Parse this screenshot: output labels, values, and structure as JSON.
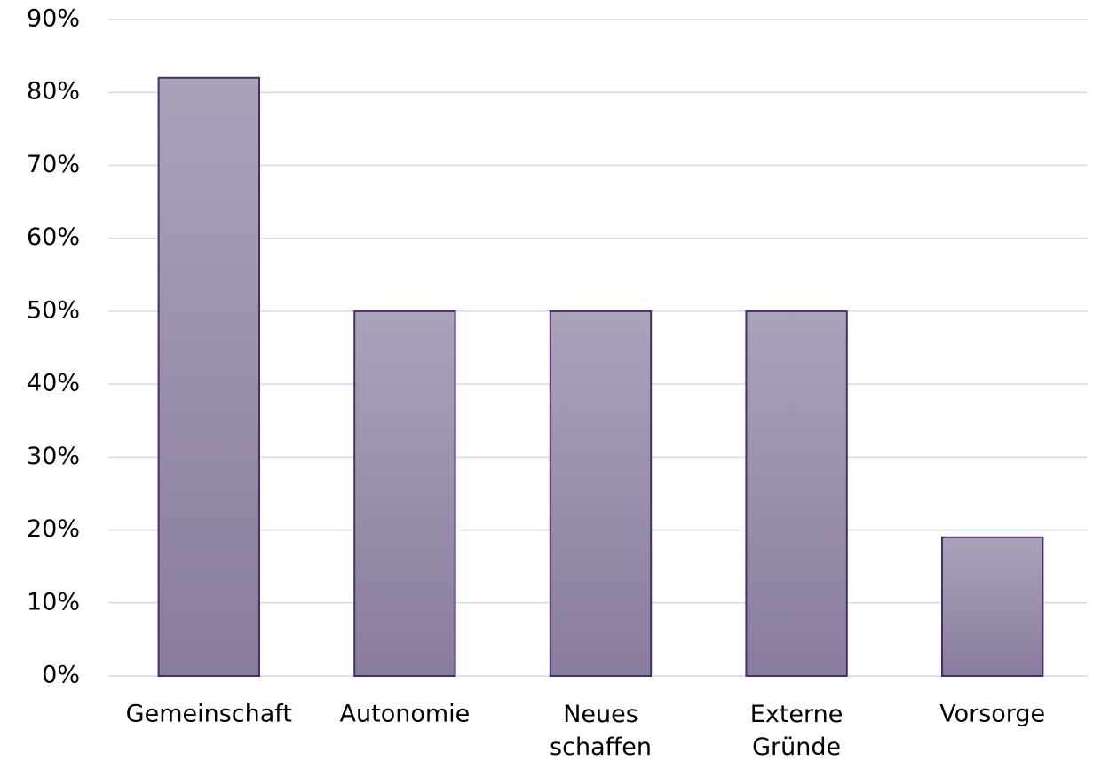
{
  "chart_data": {
    "type": "bar",
    "categories": [
      "Gemeinschaft",
      "Autonomie",
      "Neues schaffen",
      "Externe Gründe",
      "Vorsorge"
    ],
    "values": [
      82,
      50,
      50,
      50,
      19
    ],
    "color": "#8f82a3",
    "ylim": [
      0,
      90
    ],
    "yticks": [
      {
        "value": 0,
        "label": "0%"
      },
      {
        "value": 10,
        "label": "10%"
      },
      {
        "value": 20,
        "label": "20%"
      },
      {
        "value": 30,
        "label": "30%"
      },
      {
        "value": 40,
        "label": "40%"
      },
      {
        "value": 50,
        "label": "50%"
      },
      {
        "value": 60,
        "label": "60%"
      },
      {
        "value": 70,
        "label": "70%"
      },
      {
        "value": 80,
        "label": "80%"
      },
      {
        "value": 90,
        "label": "90%"
      }
    ],
    "grid": true
  }
}
